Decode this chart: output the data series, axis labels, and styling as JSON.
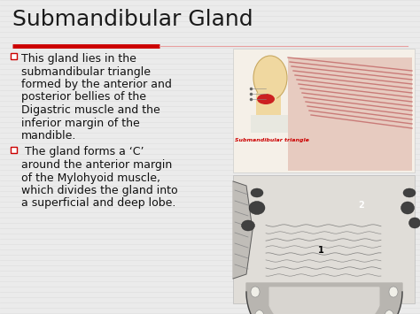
{
  "title": "Submandibular Gland",
  "title_fontsize": 18,
  "title_color": "#1a1a1a",
  "red_line_color": "#cc0000",
  "red_line_thin_color": "#e8a0a0",
  "slide_bg": "#ebebeb",
  "stripe_color": "#d8d8d8",
  "bullet1_line1": "This gland lies in the",
  "bullet1_line2": "submandibular triangle",
  "bullet1_line3": "formed by the anterior and",
  "bullet1_line4": "posterior bellies of the",
  "bullet1_line5": "Digastric muscle and the",
  "bullet1_line6": "inferior margin of the",
  "bullet1_line7": "mandible.",
  "bullet2_line1": " The gland forms a ‘C’",
  "bullet2_line2": "around the anterior margin",
  "bullet2_line3": "of the Mylohyoid muscle,",
  "bullet2_line4": "which divides the gland into",
  "bullet2_line5": "a superficial and deep lobe.",
  "bullet_fontsize": 9,
  "bullet_color": "#111111",
  "checkbox_color": "#cc0000",
  "sub_triangle_label": "Submandibular triangle",
  "sub_triangle_color": "#cc0000",
  "label1": "1",
  "label2": "2"
}
